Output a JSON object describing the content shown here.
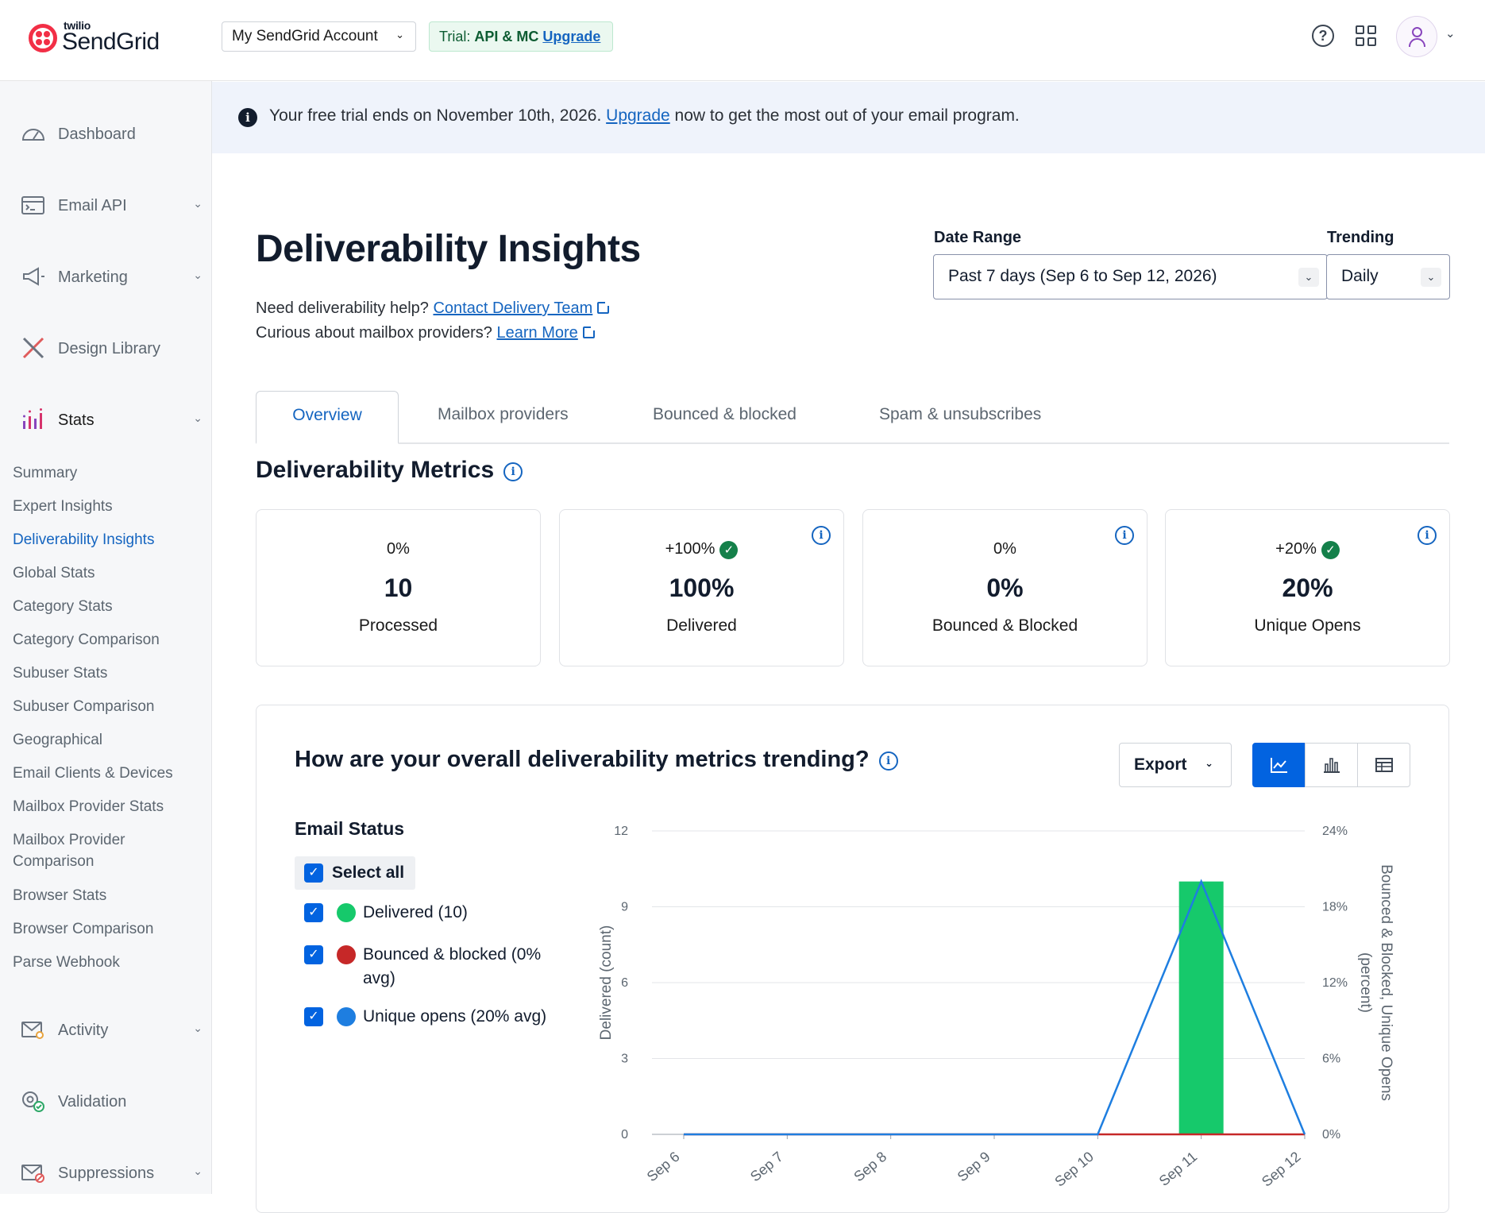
{
  "header": {
    "logo_small": "twilio",
    "logo_big": "SendGrid",
    "account": "My SendGrid Account",
    "trial_prefix": "Trial:",
    "trial_plan": "API & MC",
    "trial_upgrade": "Upgrade"
  },
  "sidebar": {
    "main": [
      {
        "label": "Dashboard",
        "icon": "gauge-icon"
      },
      {
        "label": "Email API",
        "icon": "code-window-icon"
      },
      {
        "label": "Marketing",
        "icon": "megaphone-icon"
      },
      {
        "label": "Design Library",
        "icon": "pencil-ruler-icon"
      },
      {
        "label": "Stats",
        "icon": "bar-chart-icon"
      }
    ],
    "stats_items": [
      "Summary",
      "Expert Insights",
      "Deliverability Insights",
      "Global Stats",
      "Category Stats",
      "Category Comparison",
      "Subuser Stats",
      "Subuser Comparison",
      "Geographical",
      "Email Clients & Devices",
      "Mailbox Provider Stats",
      "Mailbox Provider Comparison",
      "Browser Stats",
      "Browser Comparison",
      "Parse Webhook"
    ],
    "bottom": [
      {
        "label": "Activity",
        "icon": "envelope-search-icon"
      },
      {
        "label": "Validation",
        "icon": "at-check-icon"
      },
      {
        "label": "Suppressions",
        "icon": "envelope-block-icon"
      }
    ]
  },
  "banner": {
    "before": "Your free trial ends on November 10th, 2026. ",
    "link": "Upgrade",
    "after": " now to get the most out of your email program."
  },
  "page": {
    "title": "Deliverability Insights",
    "help1_text": "Need deliverability help? ",
    "help1_link": "Contact Delivery Team",
    "help2_text": "Curious about mailbox providers? ",
    "help2_link": "Learn More",
    "date_range_label": "Date Range",
    "date_range_value": "Past 7 days (Sep 6 to Sep 12, 2026)",
    "trending_label": "Trending",
    "trending_value": "Daily"
  },
  "tabs": [
    "Overview",
    "Mailbox providers",
    "Bounced & blocked",
    "Spam & unsubscribes"
  ],
  "metrics": {
    "title": "Deliverability Metrics",
    "cards": [
      {
        "change": "0%",
        "value": "10",
        "label": "Processed"
      },
      {
        "change": "+100%",
        "value": "100%",
        "label": "Delivered"
      },
      {
        "change": "0%",
        "value": "0%",
        "label": "Bounced & Blocked"
      },
      {
        "change": "+20%",
        "value": "20%",
        "label": "Unique Opens"
      }
    ]
  },
  "trend": {
    "title": "How are your overall deliverability metrics trending?",
    "export": "Export",
    "status_title": "Email Status",
    "select_all": "Select all",
    "legend": [
      {
        "label": "Delivered (10)",
        "color": "#16c96b"
      },
      {
        "label": "Bounced & blocked (0% avg)",
        "color": "#c62828"
      },
      {
        "label": "Unique opens (20% avg)",
        "color": "#1e7ee0"
      }
    ]
  },
  "chart_data": {
    "type": "bar",
    "categories": [
      "Sep 6",
      "Sep 7",
      "Sep 8",
      "Sep 9",
      "Sep 10",
      "Sep 11",
      "Sep 12"
    ],
    "series": [
      {
        "name": "Delivered",
        "type": "bar",
        "axis": "left",
        "color": "#16c96b",
        "values": [
          0,
          0,
          0,
          0,
          0,
          10,
          0
        ]
      },
      {
        "name": "Bounced & blocked",
        "type": "line",
        "axis": "right",
        "color": "#c62828",
        "values": [
          0,
          0,
          0,
          0,
          0,
          0,
          0
        ]
      },
      {
        "name": "Unique opens",
        "type": "line",
        "axis": "right",
        "color": "#1e7ee0",
        "values": [
          0,
          0,
          0,
          0,
          0,
          20,
          0
        ]
      }
    ],
    "ylabel": "Delivered (count)",
    "ylabel_right": "Bounced & Blocked, Unique Opens (percent)",
    "ylim": [
      0,
      12
    ],
    "yticks": [
      "0",
      "3",
      "6",
      "9",
      "12"
    ],
    "ylim_right": [
      0,
      24
    ],
    "yticks_right": [
      "0%",
      "6%",
      "12%",
      "18%",
      "24%"
    ],
    "grid": true
  }
}
